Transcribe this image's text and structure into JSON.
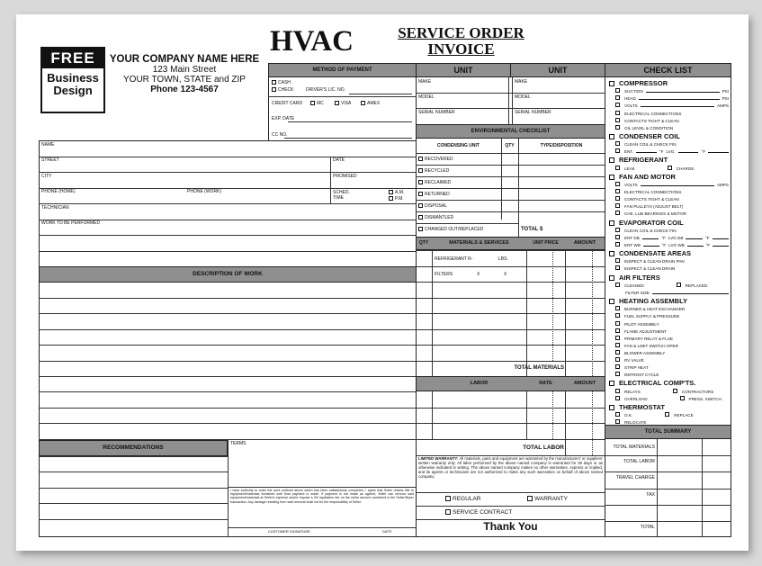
{
  "logo": {
    "line1": "FREE",
    "line2": "Business",
    "line3": "Design"
  },
  "company": {
    "name": "YOUR COMPANY NAME HERE",
    "street": "123 Main Street",
    "city": "YOUR TOWN, STATE and ZIP",
    "phone": "Phone 123-4567"
  },
  "title": {
    "main": "HVAC",
    "sub1": "SERVICE ORDER",
    "sub2": "INVOICE"
  },
  "payment": {
    "header": "METHOD OF PAYMENT",
    "cash": "CASH",
    "check": "CHECK",
    "drivers_lic": "DRIVER'S LIC. NO.",
    "credit_card": "CREDIT CARD",
    "mc": "MC",
    "visa": "VISA",
    "amex": "AMEX",
    "exp_date": "EXP. DATE",
    "cc_no": "CC NO."
  },
  "customer": {
    "name": "NAME",
    "street": "STREET",
    "date": "DATE",
    "city": "CITY",
    "promised": "PROMISED",
    "phone_home": "PHONE (HOME)",
    "phone_work": "PHONE (WORK)",
    "sched": "SCHED.",
    "time": "TIME",
    "am": "A.M.",
    "pm": "P.M.",
    "technician": "TECHNICIAN",
    "work": "WORK TO BE PERFORMED"
  },
  "description_header": "DESCRIPTION OF WORK",
  "recommendations_header": "RECOMMENDATIONS",
  "terms": {
    "label": "TERMS",
    "text": "I have authority to order the work outlined above which has been satisfactorily completed. I agree that Seller retains title to equipment/materials furnished until final payment is made. If payment is not made as agreed, Seller can remove said equipment/materials at Seller's expense and/or impose a 3% liquidation fee on the entire amount contained in the Seller/Buyer transaction. Any damage resulting from said removal shall not be the responsibility of Seller.",
    "signature": "CUSTOMER SIGNATURE",
    "date": "DATE"
  },
  "units": {
    "header": "UNIT",
    "make": "MAKE",
    "model": "MODEL",
    "serial": "SERIAL NUMBER"
  },
  "env": {
    "header": "ENVIRONMENTAL CHECKLIST",
    "col1": "CONDENSING UNIT",
    "col2": "QTY",
    "col3": "TYPE/DISPOSITION",
    "items": [
      "RECOVERED",
      "RECYCLED",
      "RECLAIMED",
      "RETURNED",
      "DISPOSAL",
      "DISMANTLED",
      "CHANGED OUT/REPLACED"
    ],
    "total": "TOTAL $"
  },
  "materials": {
    "qty": "QTY",
    "header": "MATERIALS & SERVICES",
    "unit_price": "UNIT PRICE",
    "amount": "AMOUNT",
    "refrigerant": "REFRIGERANT R-",
    "lbs": "LBS.",
    "filters": "FILTERS",
    "x": "X",
    "total": "TOTAL MATERIALS"
  },
  "labor": {
    "header": "LABOR",
    "rate": "RATE",
    "amount": "AMOUNT",
    "total": "TOTAL LABOR"
  },
  "warranty": {
    "title": "LIMITED WARRANTY:",
    "text": "All materials, parts and equipment are warranted by the manufacturers' or suppliers' written warranty only. All labor performed by the above named company is warranted for 30 days or as otherwise indicated in writing. The above named company makes no other warranties, express or implied, and its agents or technicians are not authorized to make any such warranties on behalf of above named company.",
    "regular": "REGULAR",
    "warranty": "WARRANTY",
    "service_contract": "SERVICE CONTRACT",
    "thanks": "Thank You"
  },
  "checklist": {
    "header": "CHECK LIST",
    "groups": [
      {
        "title": "COMPRESSOR",
        "items": [
          [
            "SUCTION",
            "PSI"
          ],
          [
            "HEAD",
            "PSI"
          ],
          [
            "VOLTS",
            "AMPS"
          ],
          [
            "ELECTRICAL CONNECTIONS"
          ],
          [
            "CONTACTS TIGHT & CLEAN"
          ],
          [
            "OIL LEVEL & CONDITION"
          ]
        ]
      },
      {
        "title": "CONDENSER COIL",
        "items": [
          [
            "CLEAN COIL & CHECK FIN"
          ],
          [
            "ENT.",
            "°F",
            "LVG.",
            "°F"
          ]
        ]
      },
      {
        "title": "REFRIGERANT",
        "items": [
          [
            "LEAK",
            "",
            "CHARGE"
          ]
        ]
      },
      {
        "title": "FAN AND MOTOR",
        "items": [
          [
            "VOLTS",
            "AMPS"
          ],
          [
            "ELECTRICAL CONNECTIONS"
          ],
          [
            "CONTACTS TIGHT & CLEAN"
          ],
          [
            "FAN PULLEYS (ADJUST BELT)"
          ],
          [
            "CHK. LUB BEARINGS & MOTOR"
          ]
        ]
      },
      {
        "title": "EVAPORATOR COIL",
        "items": [
          [
            "CLEAN COIL & CHECK FIN"
          ],
          [
            "ENT DB",
            "°F",
            "LVG DB",
            "°F"
          ],
          [
            "ENT WB",
            "°F",
            "LVG WB",
            "°F"
          ]
        ]
      },
      {
        "title": "CONDENSATE AREAS",
        "items": [
          [
            "INSPECT & CLEAN DRAIN PAN"
          ],
          [
            "INSPECT & CLEAN DRAIN"
          ]
        ]
      },
      {
        "title": "AIR FILTERS",
        "items": [
          [
            "CLEANED",
            "",
            "REPLACED"
          ],
          [
            "FILTER SIZE"
          ]
        ]
      },
      {
        "title": "HEATING ASSEMBLY",
        "items": [
          [
            "BURNER & HEAT EXCHANGER"
          ],
          [
            "FUEL SUPPLY & PRESSURE"
          ],
          [
            "PILOT ASSEMBLY"
          ],
          [
            "FLAME ADJUSTMENT"
          ],
          [
            "PRIMARY RELAY & FLUE"
          ],
          [
            "FAN & LIMIT SWITCH OPER"
          ],
          [
            "BLOWER ASSEMBLY"
          ],
          [
            "RV VALVE"
          ],
          [
            "STRIP HEAT"
          ],
          [
            "DEFROST CYCLE"
          ]
        ]
      },
      {
        "title": "ELECTRICAL COMP'TS.",
        "items": [
          [
            "RELAYS",
            "",
            "CONTRACTORS"
          ],
          [
            "OVERLOAD",
            "",
            "PRESS. SWITCH"
          ]
        ]
      },
      {
        "title": "THERMOSTAT",
        "items": [
          [
            "O.K.",
            "",
            "REPLACE"
          ],
          [
            "RELOCATE"
          ]
        ]
      }
    ]
  },
  "summary": {
    "header": "TOTAL SUMMARY",
    "rows": [
      "TOTAL MATERIALS",
      "TOTAL LABOR",
      "TRAVEL CHARGE",
      "TAX",
      "",
      "TOTAL"
    ]
  }
}
